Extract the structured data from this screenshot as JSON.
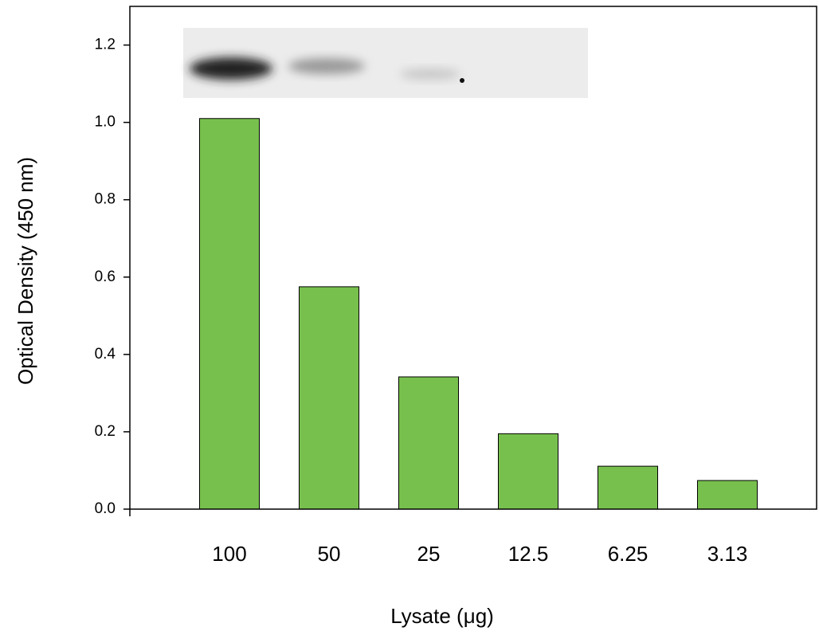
{
  "chart_data": {
    "type": "bar",
    "x_label": "Lysate (μg)",
    "y_label": "Optical Density (450 nm)",
    "categories": [
      "100",
      "50",
      "25",
      "12.5",
      "6.25",
      "3.13"
    ],
    "values": [
      1.01,
      0.575,
      0.342,
      0.195,
      0.111,
      0.074
    ],
    "color": "#78c04e",
    "ylim": [
      0,
      1.3
    ],
    "yticks": [
      {
        "value": 0,
        "label": "0.0"
      },
      0.2,
      0.4,
      0.6,
      0.8,
      {
        "value": 1,
        "label": "1.0"
      },
      1.2
    ]
  }
}
